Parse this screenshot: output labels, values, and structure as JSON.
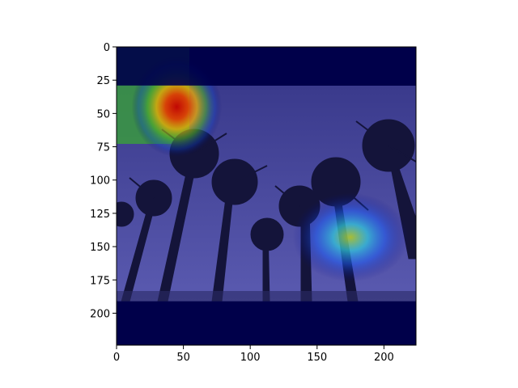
{
  "chart_data": {
    "type": "heatmap",
    "title": "",
    "xlabel": "",
    "ylabel": "",
    "xlim": [
      0,
      224
    ],
    "ylim": [
      224,
      0
    ],
    "x_ticks": [
      0,
      50,
      100,
      150,
      200
    ],
    "y_ticks": [
      0,
      25,
      50,
      75,
      100,
      125,
      150,
      175,
      200
    ],
    "grid": false,
    "background_image": "palm-trees-silhouette-image",
    "colormap": "jet",
    "colors": {
      "low": "#00004a",
      "sky": "#3d3d8f",
      "hot": "#d00000",
      "warm": "#f0a000",
      "mid": "#2f8a30",
      "cool": "#1a66ff"
    },
    "letterbox_bands": [
      {
        "y_start": 0,
        "y_end": 29
      },
      {
        "y_start": 191,
        "y_end": 224
      }
    ],
    "hotspots": [
      {
        "name": "top-left",
        "x": 45,
        "y": 45,
        "intensity": 1.0
      },
      {
        "name": "right",
        "x": 175,
        "y": 143,
        "intensity": 0.55
      }
    ]
  }
}
